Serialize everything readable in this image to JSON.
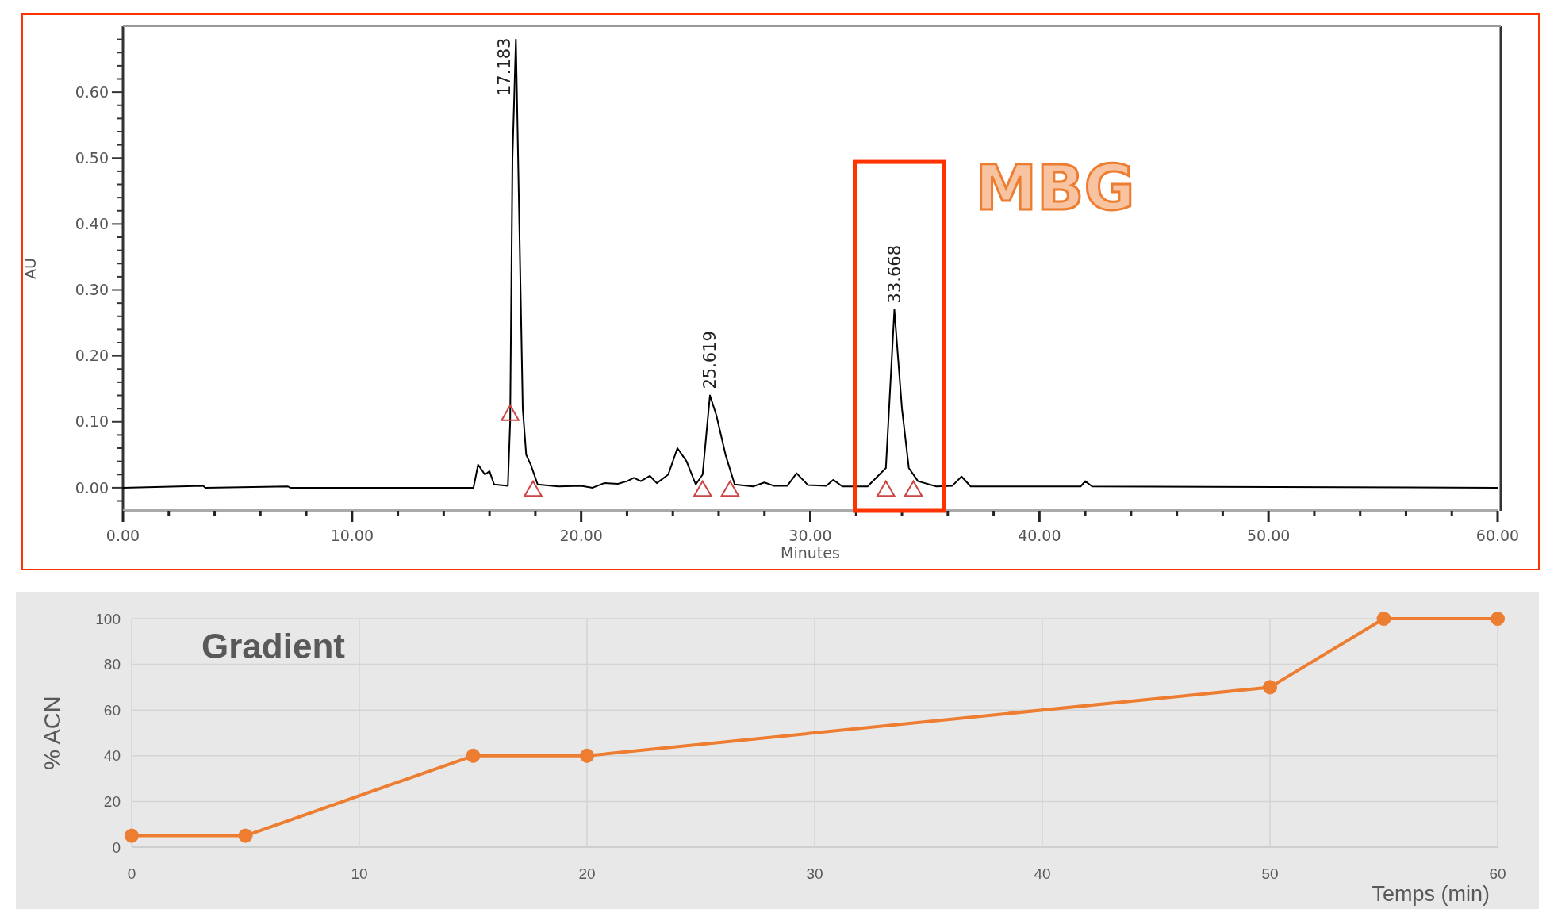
{
  "chart_data": [
    {
      "type": "line",
      "xlabel": "Minutes",
      "ylabel": "AU",
      "xlim": [
        0,
        60
      ],
      "ylim": [
        -0.035,
        0.7
      ],
      "xticks": [
        {
          "value": 0,
          "label": "0.00"
        },
        {
          "value": 2,
          "label": null
        },
        {
          "value": 4,
          "label": null
        },
        {
          "value": 6,
          "label": null
        },
        {
          "value": 8,
          "label": null
        },
        {
          "value": 10,
          "label": "10.00"
        },
        {
          "value": 12,
          "label": null
        },
        {
          "value": 14,
          "label": null
        },
        {
          "value": 16,
          "label": null
        },
        {
          "value": 18,
          "label": null
        },
        {
          "value": 20,
          "label": "20.00"
        },
        {
          "value": 22,
          "label": null
        },
        {
          "value": 24,
          "label": null
        },
        {
          "value": 26,
          "label": null
        },
        {
          "value": 28,
          "label": null
        },
        {
          "value": 30,
          "label": "30.00"
        },
        {
          "value": 32,
          "label": null
        },
        {
          "value": 34,
          "label": null
        },
        {
          "value": 36,
          "label": null
        },
        {
          "value": 38,
          "label": null
        },
        {
          "value": 40,
          "label": "40.00"
        },
        {
          "value": 42,
          "label": null
        },
        {
          "value": 44,
          "label": null
        },
        {
          "value": 46,
          "label": null
        },
        {
          "value": 48,
          "label": null
        },
        {
          "value": 50,
          "label": "50.00"
        },
        {
          "value": 52,
          "label": null
        },
        {
          "value": 54,
          "label": null
        },
        {
          "value": 56,
          "label": null
        },
        {
          "value": 58,
          "label": null
        },
        {
          "value": 60,
          "label": "60.00"
        }
      ],
      "yticks": [
        {
          "value": -0.02,
          "label": null
        },
        {
          "value": 0,
          "label": "0.00"
        },
        {
          "value": 0.02,
          "label": null
        },
        {
          "value": 0.04,
          "label": null
        },
        {
          "value": 0.06,
          "label": null
        },
        {
          "value": 0.08,
          "label": null
        },
        {
          "value": 0.1,
          "label": "0.10"
        },
        {
          "value": 0.12,
          "label": null
        },
        {
          "value": 0.14,
          "label": null
        },
        {
          "value": 0.16,
          "label": null
        },
        {
          "value": 0.18,
          "label": null
        },
        {
          "value": 0.2,
          "label": "0.20"
        },
        {
          "value": 0.22,
          "label": null
        },
        {
          "value": 0.24,
          "label": null
        },
        {
          "value": 0.26,
          "label": null
        },
        {
          "value": 0.28,
          "label": null
        },
        {
          "value": 0.3,
          "label": "0.30"
        },
        {
          "value": 0.32,
          "label": null
        },
        {
          "value": 0.34,
          "label": null
        },
        {
          "value": 0.36,
          "label": null
        },
        {
          "value": 0.38,
          "label": null
        },
        {
          "value": 0.4,
          "label": "0.40"
        },
        {
          "value": 0.42,
          "label": null
        },
        {
          "value": 0.44,
          "label": null
        },
        {
          "value": 0.46,
          "label": null
        },
        {
          "value": 0.48,
          "label": null
        },
        {
          "value": 0.5,
          "label": "0.50"
        },
        {
          "value": 0.52,
          "label": null
        },
        {
          "value": 0.54,
          "label": null
        },
        {
          "value": 0.56,
          "label": null
        },
        {
          "value": 0.58,
          "label": null
        },
        {
          "value": 0.6,
          "label": "0.60"
        },
        {
          "value": 0.62,
          "label": null
        },
        {
          "value": 0.64,
          "label": null
        },
        {
          "value": 0.66,
          "label": null
        },
        {
          "value": 0.68,
          "label": null
        }
      ],
      "series": [
        {
          "color": "#000000",
          "marker": "none",
          "x": [
            0,
            3.5,
            3.6,
            7.2,
            7.3,
            15.3,
            15.5,
            15.8,
            16.0,
            16.2,
            16.8,
            16.9,
            17.0,
            17.15,
            17.3,
            17.45,
            17.6,
            17.8,
            18.1,
            19,
            20,
            20.5,
            21,
            21.6,
            22,
            22.3,
            22.6,
            23,
            23.3,
            23.8,
            24.2,
            24.6,
            25.0,
            25.3,
            25.62,
            25.9,
            26.3,
            26.7,
            27.5,
            28,
            28.4,
            29.0,
            29.4,
            29.9,
            30.7,
            31.0,
            31.4,
            32.5,
            33.3,
            33.67,
            34.0,
            34.3,
            34.7,
            35.5,
            36.2,
            36.6,
            37.0,
            41.8,
            42.0,
            42.3,
            60
          ],
          "values": [
            0,
            0.003,
            0,
            0.002,
            0,
            0,
            0.035,
            0.02,
            0.025,
            0.005,
            0.003,
            0.1,
            0.5,
            0.68,
            0.4,
            0.12,
            0.05,
            0.035,
            0.005,
            0.002,
            0.003,
            0,
            0.007,
            0.006,
            0.01,
            0.015,
            0.01,
            0.018,
            0.007,
            0.02,
            0.06,
            0.04,
            0.005,
            0.02,
            0.14,
            0.11,
            0.05,
            0.005,
            0.002,
            0.008,
            0.003,
            0.003,
            0.022,
            0.004,
            0.003,
            0.012,
            0.002,
            0.002,
            0.03,
            0.27,
            0.12,
            0.03,
            0.01,
            0.002,
            0.003,
            0.017,
            0.002,
            0.002,
            0.01,
            0.002,
            0
          ]
        },
        {
          "type": "scatter",
          "color": "#cc4444",
          "marker": "triangle",
          "x": [
            16.9,
            17.9,
            25.3,
            26.5,
            33.3,
            34.5
          ],
          "values": [
            0.11,
            -0.005,
            -0.005,
            -0.005,
            -0.005,
            -0.005
          ]
        }
      ],
      "annotations": [
        {
          "text": "17.183",
          "x": 17.15,
          "y": 0.68
        },
        {
          "text": "25.619",
          "x": 25.62,
          "y": 0.14
        },
        {
          "text": "33.668",
          "x": 33.67,
          "y": 0.27
        },
        {
          "text": "MBG",
          "x": 33.67,
          "y": 0.27
        }
      ]
    },
    {
      "type": "line",
      "title": "Gradient",
      "xlabel": "Temps (min)",
      "ylabel": "% ACN",
      "xlim": [
        0,
        60
      ],
      "ylim": [
        0,
        100
      ],
      "xticks": [
        0,
        10,
        20,
        30,
        40,
        50,
        60
      ],
      "yticks": [
        0,
        20,
        40,
        60,
        80,
        100
      ],
      "grid": true,
      "marker": "circle",
      "series": [
        {
          "color": "#ed7d31",
          "x": [
            0,
            5,
            15,
            20,
            50,
            55,
            60
          ],
          "values": [
            5,
            5,
            40,
            40,
            70,
            100,
            100
          ]
        }
      ]
    }
  ]
}
